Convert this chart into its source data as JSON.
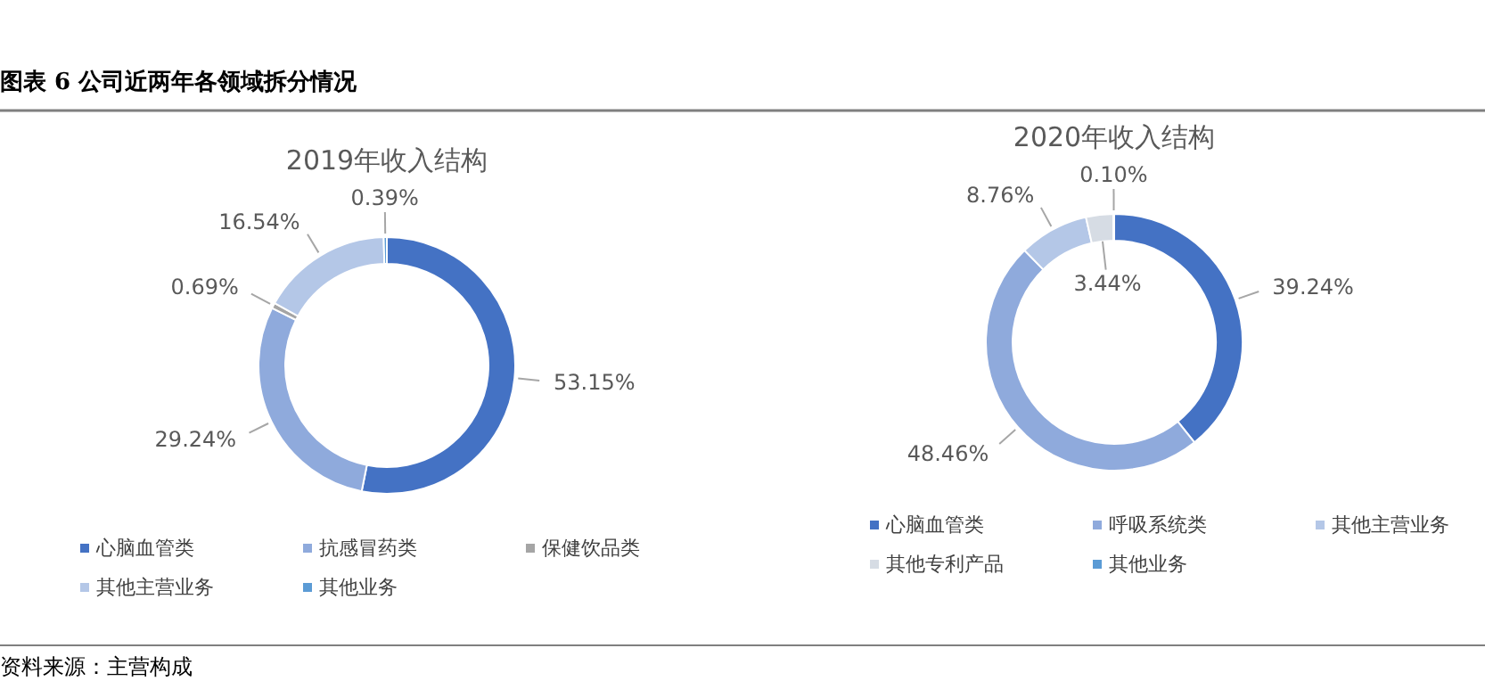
{
  "chart_data": [
    {
      "type": "donut",
      "title": "2019年收入结构",
      "categories": [
        "心脑血管类",
        "抗感冒药类",
        "保健饮品类",
        "其他主营业务",
        "其他业务"
      ],
      "values": [
        53.15,
        29.24,
        0.69,
        16.54,
        0.39
      ],
      "colors": [
        "#4472c4",
        "#8faadc",
        "#a5a5a5",
        "#b4c7e7",
        "#5b9bd5"
      ],
      "value_labels": [
        "53.15%",
        "29.24%",
        "0.69%",
        "16.54%",
        "0.39%"
      ],
      "legend": "bottom"
    },
    {
      "type": "donut",
      "title": "2020年收入结构",
      "categories": [
        "心脑血管类",
        "呼吸系统类",
        "其他主营业务",
        "其他专利产品",
        "其他业务"
      ],
      "values": [
        39.24,
        48.46,
        8.76,
        3.44,
        0.1
      ],
      "colors": [
        "#4472c4",
        "#8faadc",
        "#b4c7e7",
        "#d6dce4",
        "#5b9bd5"
      ],
      "value_labels": [
        "39.24%",
        "48.46%",
        "8.76%",
        "3.44%",
        "0.10%"
      ],
      "legend": "bottom"
    },
    {
      "type": "other",
      "title": "图表 6 公司近两年各领域拆分情况",
      "annotations": [
        "资料来源：主营构成"
      ]
    }
  ]
}
